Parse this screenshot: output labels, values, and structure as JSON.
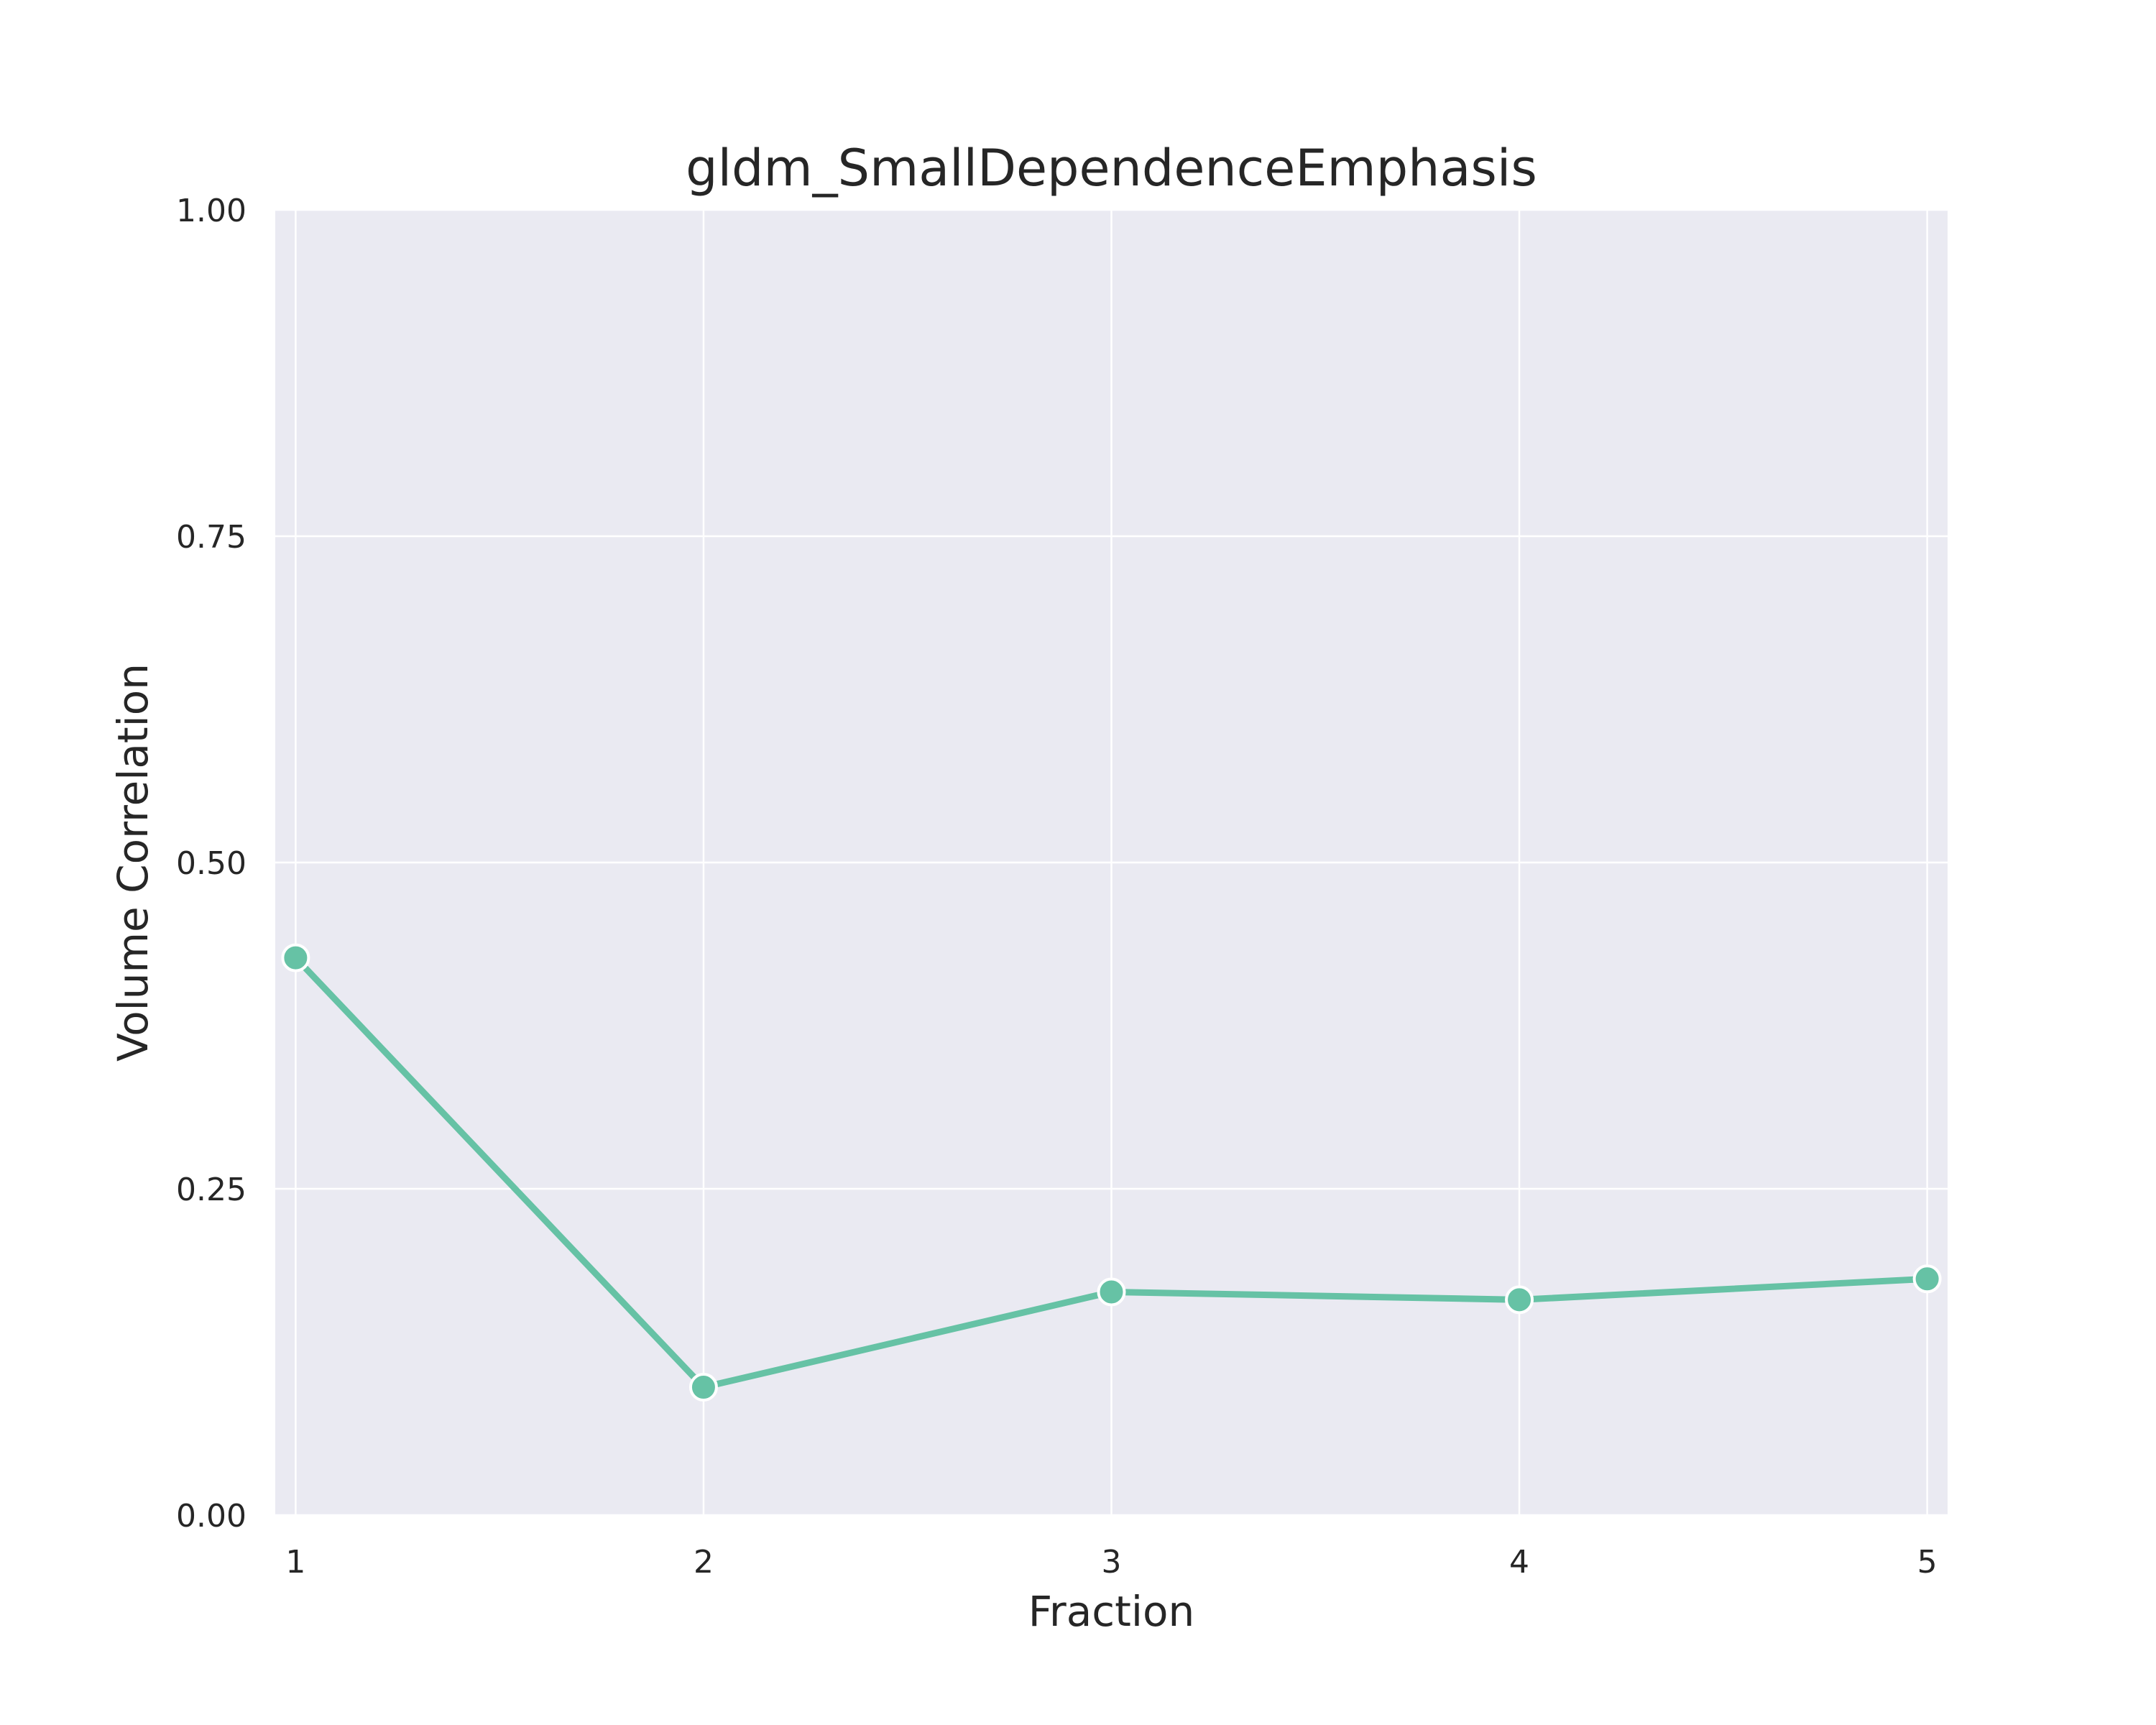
{
  "chart_data": {
    "type": "line",
    "title": "gldm_SmallDependenceEmphasis",
    "xlabel": "Fraction",
    "ylabel": "Volume Correlation",
    "x": [
      1,
      2,
      3,
      4,
      5
    ],
    "series": [
      {
        "values": [
          0.427,
          0.098,
          0.171,
          0.165,
          0.181
        ],
        "color": "#66c2a5"
      }
    ],
    "xlim": [
      0.95,
      5.05
    ],
    "ylim": [
      0,
      1
    ],
    "xticks": [
      "1",
      "2",
      "3",
      "4",
      "5"
    ],
    "yticks": [
      "0.00",
      "0.25",
      "0.50",
      "0.75",
      "1.00"
    ],
    "grid": true,
    "background": "#eaeaf2",
    "gridColor": "#ffffff"
  }
}
